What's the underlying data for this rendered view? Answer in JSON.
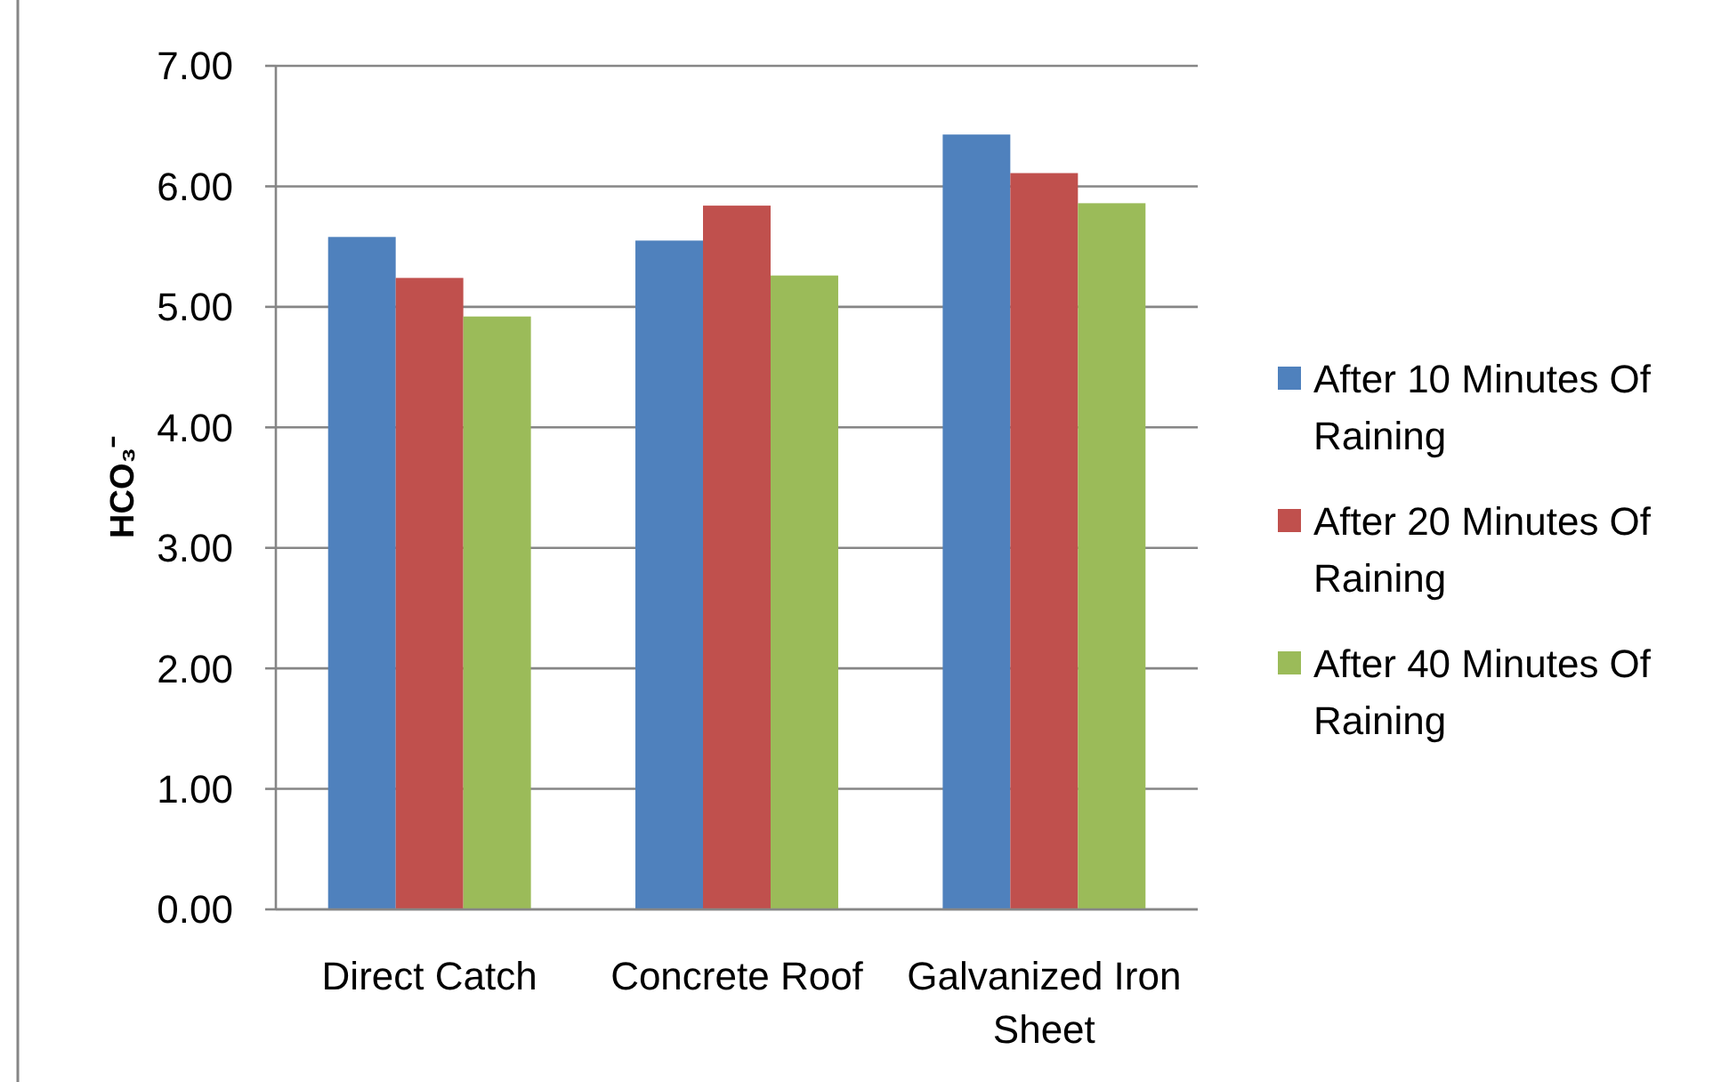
{
  "chart_data": {
    "type": "bar",
    "ylabel": "HCO₃⁻",
    "categories": [
      "Direct Catch",
      "Concrete Roof",
      "Galvanized Iron Sheet"
    ],
    "series": [
      {
        "name": "After 10 Minutes Of Raining",
        "color": "#4f81bd",
        "values": [
          5.58,
          5.55,
          6.43
        ]
      },
      {
        "name": "After 20 Minutes Of Raining",
        "color": "#c0504d",
        "values": [
          5.24,
          5.84,
          6.11
        ]
      },
      {
        "name": "After 40 Minutes Of Raining",
        "color": "#9bbb59",
        "values": [
          4.92,
          5.26,
          5.86
        ]
      }
    ],
    "ylim": [
      0,
      7
    ],
    "yticks": [
      {
        "value": 0,
        "label": "0.00"
      },
      {
        "value": 1,
        "label": "1.00"
      },
      {
        "value": 2,
        "label": "2.00"
      },
      {
        "value": 3,
        "label": "3.00"
      },
      {
        "value": 4,
        "label": "4.00"
      },
      {
        "value": 5,
        "label": "5.00"
      },
      {
        "value": 6,
        "label": "6.00"
      },
      {
        "value": 7,
        "label": "7.00"
      }
    ],
    "grid": "y",
    "legend": "right"
  }
}
